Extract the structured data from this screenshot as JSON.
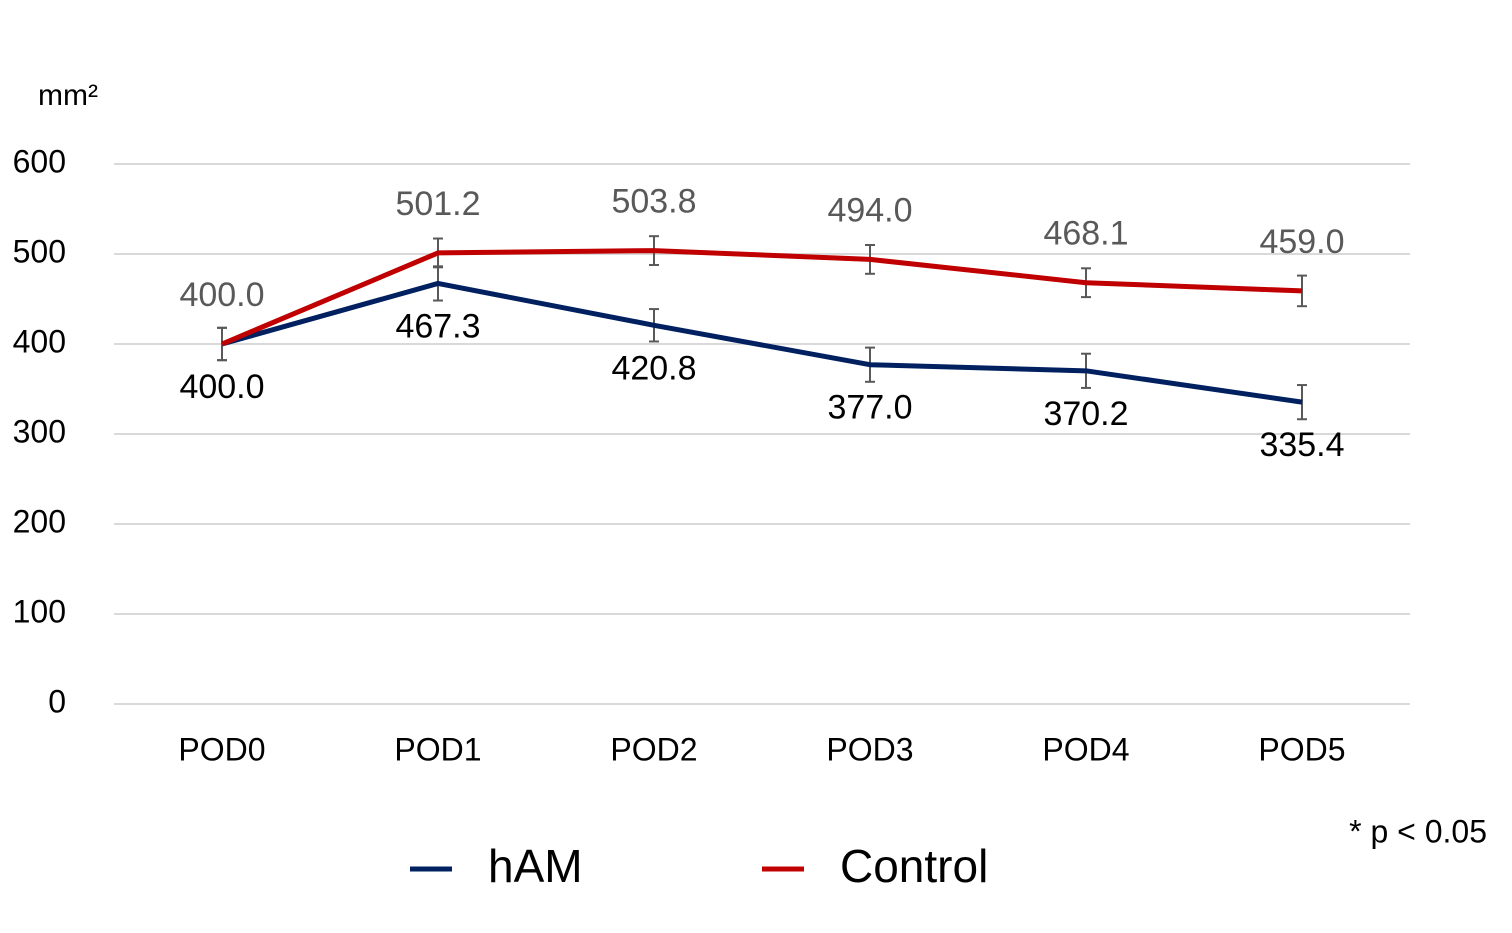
{
  "chart_data": {
    "type": "line",
    "y_unit": "mm²",
    "footnote": "* p < 0.05",
    "categories": [
      "POD0",
      "POD1",
      "POD2",
      "POD3",
      "POD4",
      "POD5"
    ],
    "series": [
      {
        "name": "hAM",
        "color": "#002060",
        "label_color": "#000000",
        "label_side": "below",
        "values": [
          400,
          467.3,
          420.8,
          377,
          370.2,
          335.4
        ],
        "value_labels": [
          "400.0",
          "467.3",
          "420.8",
          "377.0",
          "370.2",
          "335.4"
        ],
        "errors": [
          18,
          19,
          18,
          19,
          19,
          19
        ]
      },
      {
        "name": "Control",
        "color": "#c00000",
        "label_color": "#595959",
        "label_side": "above",
        "values": [
          400,
          501.2,
          503.8,
          494,
          468.1,
          459
        ],
        "value_labels": [
          "400.0",
          "501.2",
          "503.8",
          "494.0",
          "468.1",
          "459.0"
        ],
        "errors": [
          18,
          16,
          16,
          16,
          16,
          17
        ]
      }
    ],
    "ylim": [
      0,
      600
    ],
    "yticks": [
      0,
      100,
      200,
      300,
      400,
      500,
      600
    ],
    "grid": true,
    "legend": "bottom"
  }
}
